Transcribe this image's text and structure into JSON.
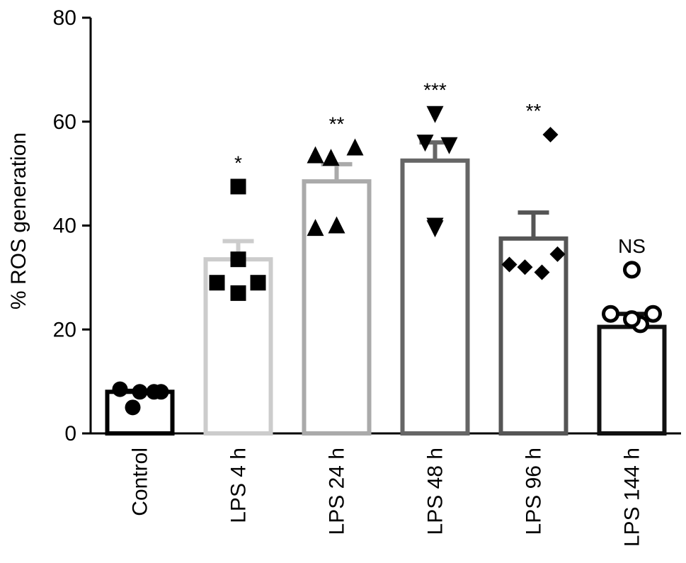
{
  "chart_data": {
    "type": "bar",
    "title": "",
    "xlabel": "",
    "ylabel": "% ROS generation",
    "ylim": [
      0,
      80
    ],
    "yticks": [
      0,
      20,
      40,
      60,
      80
    ],
    "grid": false,
    "categories": [
      "Control",
      "LPS 4 h",
      "LPS 24 h",
      "LPS 48 h",
      "LPS 96 h",
      "LPS 144 h"
    ],
    "values": [
      8,
      33.5,
      48.5,
      52.5,
      37.5,
      20.5
    ],
    "error_upper": [
      8.2,
      37,
      51.8,
      56,
      42.5,
      23
    ],
    "significance": [
      "",
      "*",
      "**",
      "***",
      "**",
      "NS"
    ],
    "bar_colors": [
      "#000000",
      "#cccccc",
      "#aaaaaa",
      "#666666",
      "#555555",
      "#111111"
    ],
    "marker_shapes": [
      "circle",
      "square",
      "triangle-up",
      "triangle-down",
      "diamond",
      "open-circle"
    ],
    "points": [
      [
        8.5,
        8,
        8,
        8,
        5
      ],
      [
        47.5,
        33.5,
        29,
        29,
        27
      ],
      [
        53.5,
        53,
        55,
        39.5,
        40
      ],
      [
        61.5,
        56,
        55.5,
        40,
        39.5
      ],
      [
        57.5,
        34.5,
        32.5,
        32,
        31
      ],
      [
        31.5,
        21,
        23,
        23,
        22
      ]
    ]
  }
}
